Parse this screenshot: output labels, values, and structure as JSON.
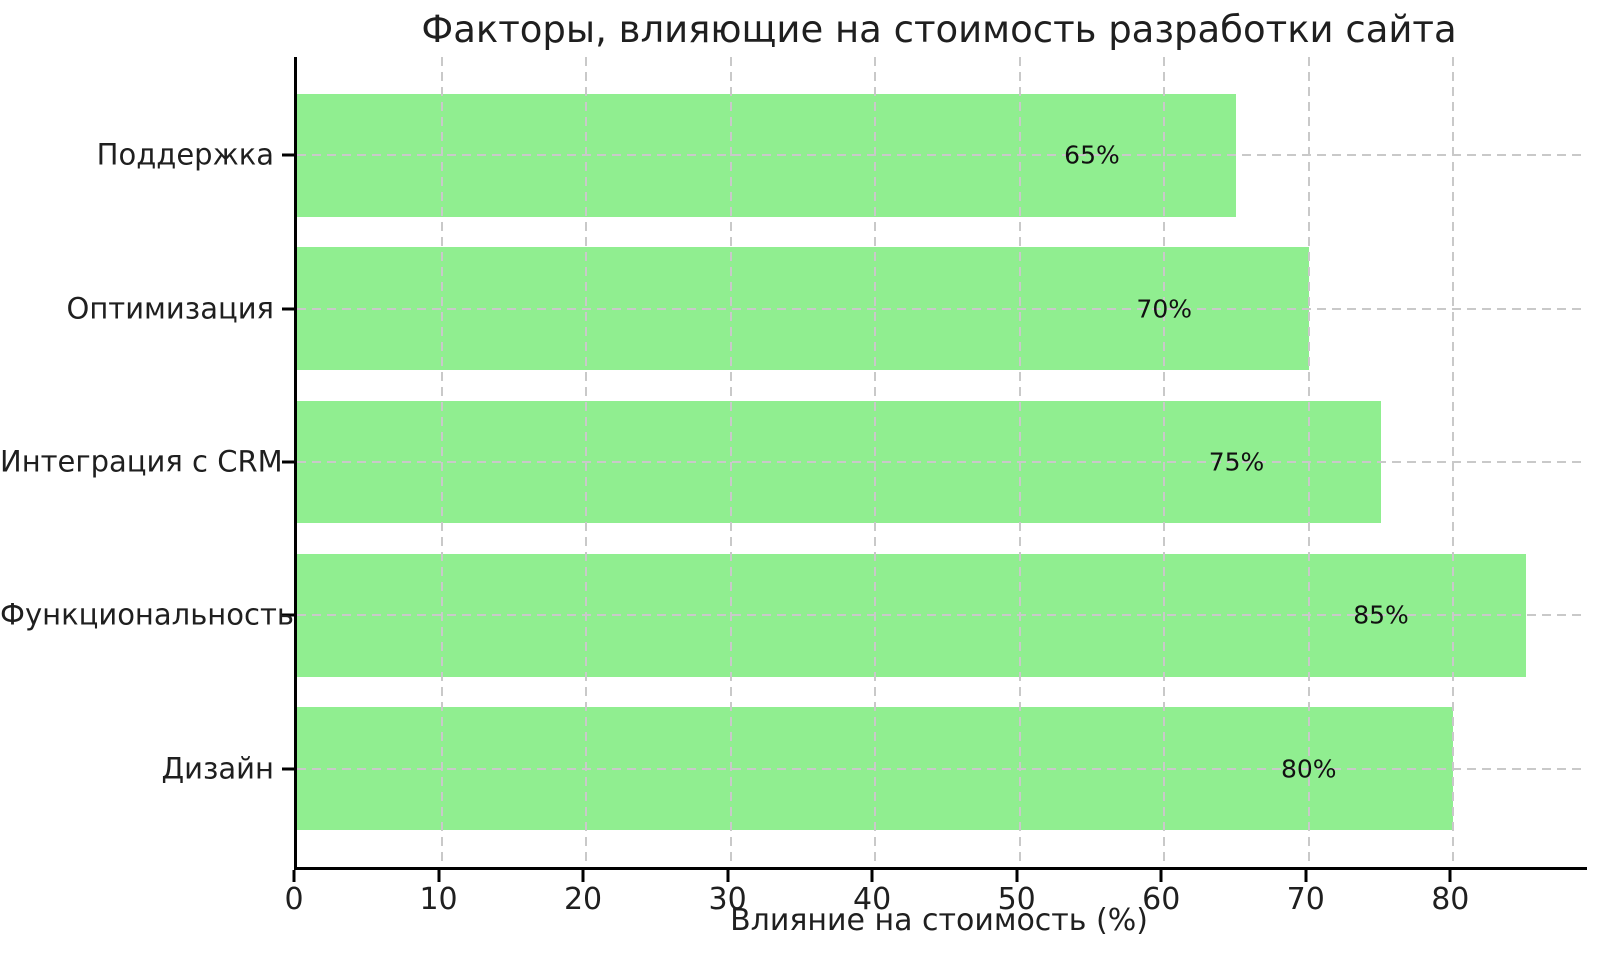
{
  "chart_data": {
    "type": "bar",
    "orientation": "horizontal",
    "title": "Факторы, влияющие на стоимость разработки сайта",
    "xlabel": "Влияние на стоимость (%)",
    "ylabel": "",
    "categories": [
      "Поддержка",
      "Оптимизация",
      "Интеграция с CRM",
      "Функциональность",
      "Дизайн"
    ],
    "values": [
      65,
      70,
      75,
      85,
      80
    ],
    "bar_labels": [
      "65%",
      "70%",
      "75%",
      "85%",
      "80%"
    ],
    "xticks": [
      "0",
      "10",
      "20",
      "30",
      "40",
      "50",
      "60",
      "70",
      "80"
    ],
    "xtick_values": [
      0,
      10,
      20,
      30,
      40,
      50,
      60,
      70,
      80
    ],
    "xlim": [
      0,
      89.25
    ],
    "grid": "dashed",
    "legend": "none",
    "bar_color": "#90EE90",
    "grid_color": "#c9c9c9",
    "axis_color": "#000000",
    "text_color": "#1f1f1f",
    "value_label_offset_units": 10
  }
}
